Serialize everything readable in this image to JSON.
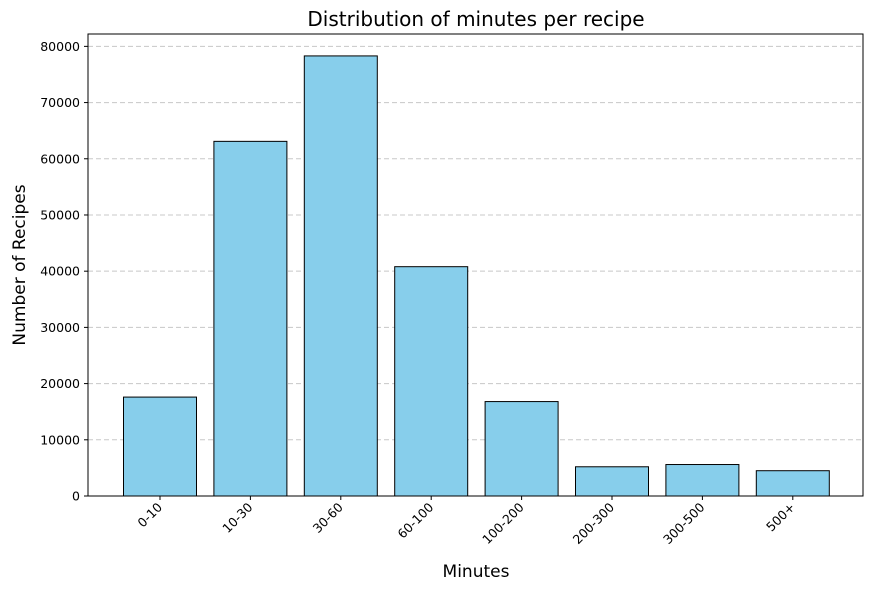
{
  "chart_data": {
    "type": "bar",
    "title": "Distribution of minutes per recipe",
    "xlabel": "Minutes",
    "ylabel": "Number of Recipes",
    "categories": [
      "0-10",
      "10-30",
      "30-60",
      "60-100",
      "100-200",
      "200-300",
      "300-500",
      "500+"
    ],
    "values": [
      17600,
      63100,
      78300,
      40800,
      16800,
      5200,
      5600,
      4500
    ],
    "ylim": [
      0,
      82200
    ],
    "yticks": [
      0,
      10000,
      20000,
      30000,
      40000,
      50000,
      60000,
      70000,
      80000
    ],
    "ytick_labels": [
      "0",
      "10000",
      "20000",
      "30000",
      "40000",
      "50000",
      "60000",
      "70000",
      "80000"
    ],
    "grid": "y-dashed",
    "legend": "none",
    "bar_color": "#87CEEB",
    "bar_edge_color": "#000000",
    "grid_color": "#c8c8c8"
  }
}
